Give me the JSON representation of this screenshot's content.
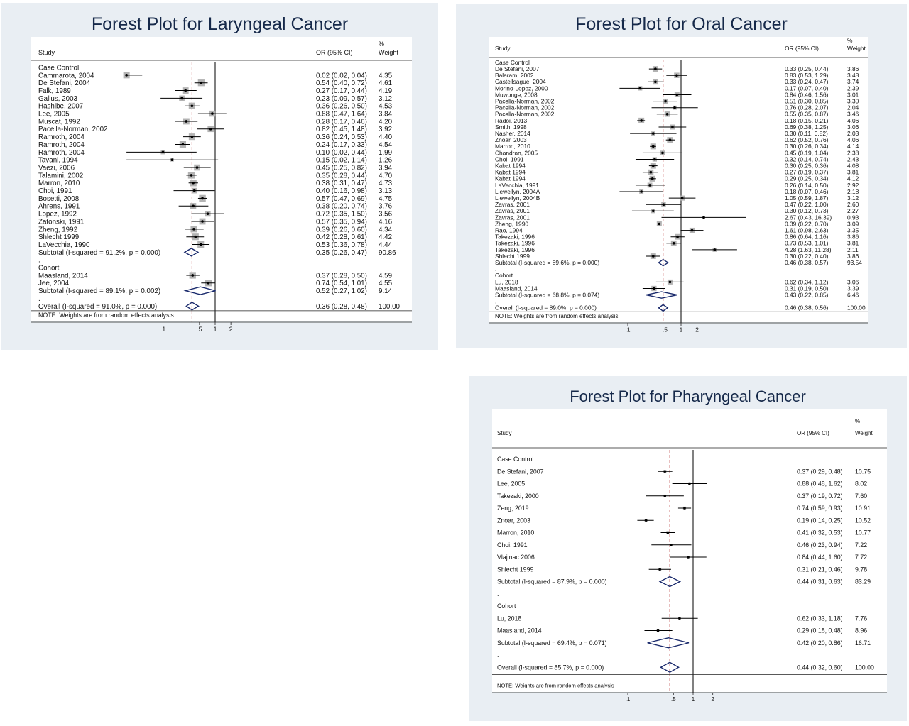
{
  "chart_data": [
    {
      "type": "forest",
      "title": "Forest Plot for Laryngeal Cancer",
      "columns": {
        "study": "Study",
        "or": "OR (95% CI)",
        "weight_top": "%",
        "weight_bottom": "Weight"
      },
      "note": "NOTE: Weights are from random effects analysis",
      "x_ticks": [
        ".1",
        ".5",
        "1",
        "2"
      ],
      "reference_line": 1,
      "overall_line": 0.36,
      "rows": [
        {
          "kind": "group",
          "label": "Case Control"
        },
        {
          "kind": "study",
          "label": "Cammarota, 2004",
          "or": 0.02,
          "lo": 0.02,
          "hi": 0.04,
          "ci_text": "0.02 (0.02, 0.04)",
          "weight": "4.35"
        },
        {
          "kind": "study",
          "label": "De Stefani, 2004",
          "or": 0.54,
          "lo": 0.4,
          "hi": 0.72,
          "ci_text": "0.54 (0.40, 0.72)",
          "weight": "4.61"
        },
        {
          "kind": "study",
          "label": "Falk, 1989",
          "or": 0.27,
          "lo": 0.17,
          "hi": 0.44,
          "ci_text": "0.27 (0.17, 0.44)",
          "weight": "4.19"
        },
        {
          "kind": "study",
          "label": "Gallus, 2003",
          "or": 0.23,
          "lo": 0.09,
          "hi": 0.57,
          "ci_text": "0.23 (0.09, 0.57)",
          "weight": "3.12"
        },
        {
          "kind": "study",
          "label": "Hashibe, 2007",
          "or": 0.36,
          "lo": 0.26,
          "hi": 0.5,
          "ci_text": "0.36 (0.26, 0.50)",
          "weight": "4.53"
        },
        {
          "kind": "study",
          "label": "Lee, 2005",
          "or": 0.88,
          "lo": 0.47,
          "hi": 1.64,
          "ci_text": "0.88 (0.47, 1.64)",
          "weight": "3.84"
        },
        {
          "kind": "study",
          "label": "Muscat, 1992",
          "or": 0.28,
          "lo": 0.17,
          "hi": 0.46,
          "ci_text": "0.28 (0.17, 0.46)",
          "weight": "4.20"
        },
        {
          "kind": "study",
          "label": "Pacella-Norman, 2002",
          "or": 0.82,
          "lo": 0.45,
          "hi": 1.48,
          "ci_text": "0.82 (0.45, 1.48)",
          "weight": "3.92"
        },
        {
          "kind": "study",
          "label": "Ramroth, 2004",
          "or": 0.36,
          "lo": 0.24,
          "hi": 0.53,
          "ci_text": "0.36 (0.24, 0.53)",
          "weight": "4.40"
        },
        {
          "kind": "study",
          "label": "Ramroth, 2004",
          "or": 0.24,
          "lo": 0.17,
          "hi": 0.33,
          "ci_text": "0.24 (0.17, 0.33)",
          "weight": "4.54"
        },
        {
          "kind": "study",
          "label": "Ramroth, 2004",
          "or": 0.1,
          "lo": 0.02,
          "hi": 0.44,
          "ci_text": "0.10 (0.02, 0.44)",
          "weight": "1.99"
        },
        {
          "kind": "study",
          "label": "Tavani, 1994",
          "or": 0.15,
          "lo": 0.02,
          "hi": 1.14,
          "ci_text": "0.15 (0.02, 1.14)",
          "weight": "1.26"
        },
        {
          "kind": "study",
          "label": "Vaezi, 2006",
          "or": 0.45,
          "lo": 0.25,
          "hi": 0.82,
          "ci_text": "0.45 (0.25, 0.82)",
          "weight": "3.94"
        },
        {
          "kind": "study",
          "label": "Talamini, 2002",
          "or": 0.35,
          "lo": 0.28,
          "hi": 0.44,
          "ci_text": "0.35 (0.28, 0.44)",
          "weight": "4.70"
        },
        {
          "kind": "study",
          "label": "Marron, 2010",
          "or": 0.38,
          "lo": 0.31,
          "hi": 0.47,
          "ci_text": "0.38 (0.31, 0.47)",
          "weight": "4.73"
        },
        {
          "kind": "study",
          "label": "Choi, 1991",
          "or": 0.4,
          "lo": 0.16,
          "hi": 0.98,
          "ci_text": "0.40 (0.16, 0.98)",
          "weight": "3.13"
        },
        {
          "kind": "study",
          "label": "Bosetti, 2008",
          "or": 0.57,
          "lo": 0.47,
          "hi": 0.69,
          "ci_text": "0.57 (0.47, 0.69)",
          "weight": "4.75"
        },
        {
          "kind": "study",
          "label": "Ahrens, 1991",
          "or": 0.38,
          "lo": 0.2,
          "hi": 0.74,
          "ci_text": "0.38 (0.20, 0.74)",
          "weight": "3.76"
        },
        {
          "kind": "study",
          "label": "Lopez, 1992",
          "or": 0.72,
          "lo": 0.35,
          "hi": 1.5,
          "ci_text": "0.72 (0.35, 1.50)",
          "weight": "3.56"
        },
        {
          "kind": "study",
          "label": "Zatonski, 1991",
          "or": 0.57,
          "lo": 0.35,
          "hi": 0.94,
          "ci_text": "0.57 (0.35, 0.94)",
          "weight": "4.16"
        },
        {
          "kind": "study",
          "label": "Zheng, 1992",
          "or": 0.39,
          "lo": 0.26,
          "hi": 0.6,
          "ci_text": "0.39 (0.26, 0.60)",
          "weight": "4.34"
        },
        {
          "kind": "study",
          "label": "Shlecht 1999",
          "or": 0.42,
          "lo": 0.28,
          "hi": 0.61,
          "ci_text": "0.42 (0.28, 0.61)",
          "weight": "4.42"
        },
        {
          "kind": "study",
          "label": "LaVecchia, 1990",
          "or": 0.53,
          "lo": 0.36,
          "hi": 0.78,
          "ci_text": "0.53 (0.36, 0.78)",
          "weight": "4.44"
        },
        {
          "kind": "subtotal",
          "label": "Subtotal  (I-squared = 91.2%, p = 0.000)",
          "or": 0.35,
          "lo": 0.26,
          "hi": 0.47,
          "ci_text": "0.35 (0.26, 0.47)",
          "weight": "90.86"
        },
        {
          "kind": "dot",
          "label": "."
        },
        {
          "kind": "group",
          "label": "Cohort"
        },
        {
          "kind": "study",
          "label": "Maasland, 2014",
          "or": 0.37,
          "lo": 0.28,
          "hi": 0.5,
          "ci_text": "0.37 (0.28, 0.50)",
          "weight": "4.59"
        },
        {
          "kind": "study",
          "label": "Jee, 2004",
          "or": 0.74,
          "lo": 0.54,
          "hi": 1.01,
          "ci_text": "0.74 (0.54, 1.01)",
          "weight": "4.55"
        },
        {
          "kind": "subtotal",
          "label": "Subtotal  (I-squared = 89.1%, p = 0.002)",
          "or": 0.52,
          "lo": 0.27,
          "hi": 1.02,
          "ci_text": "0.52 (0.27, 1.02)",
          "weight": "9.14"
        },
        {
          "kind": "dot",
          "label": "."
        },
        {
          "kind": "subtotal",
          "label": "Overall  (I-squared = 91.0%, p = 0.000)",
          "or": 0.36,
          "lo": 0.28,
          "hi": 0.48,
          "ci_text": "0.36 (0.28, 0.48)",
          "weight": "100.00"
        }
      ]
    },
    {
      "type": "forest",
      "title": "Forest Plot for Oral Cancer",
      "columns": {
        "study": "Study",
        "or": "OR (95% CI)",
        "weight_top": "%",
        "weight_bottom": "Weight"
      },
      "note": "NOTE: Weights are from random effects analysis",
      "x_ticks": [
        ".1",
        ".5",
        "1",
        "2"
      ],
      "reference_line": 1,
      "overall_line": 0.46,
      "rows": [
        {
          "kind": "group",
          "label": "Case Control"
        },
        {
          "kind": "study",
          "label": "De Stefani, 2007",
          "or": 0.33,
          "lo": 0.25,
          "hi": 0.44,
          "ci_text": "0.33 (0.25, 0.44)",
          "weight": "3.86"
        },
        {
          "kind": "study",
          "label": "Balaram, 2002",
          "or": 0.83,
          "lo": 0.53,
          "hi": 1.29,
          "ci_text": "0.83 (0.53, 1.29)",
          "weight": "3.48"
        },
        {
          "kind": "study",
          "label": "Castellsague, 2004",
          "or": 0.33,
          "lo": 0.24,
          "hi": 0.47,
          "ci_text": "0.33 (0.24, 0.47)",
          "weight": "3.74"
        },
        {
          "kind": "study",
          "label": "Morino-Lopez, 2000",
          "or": 0.17,
          "lo": 0.07,
          "hi": 0.4,
          "ci_text": "0.17 (0.07, 0.40)",
          "weight": "2.39"
        },
        {
          "kind": "study",
          "label": "Muwonge, 2008",
          "or": 0.84,
          "lo": 0.46,
          "hi": 1.56,
          "ci_text": "0.84 (0.46, 1.56)",
          "weight": "3.01"
        },
        {
          "kind": "study",
          "label": "Pacella-Norman, 2002",
          "or": 0.51,
          "lo": 0.3,
          "hi": 0.85,
          "ci_text": "0.51 (0.30, 0.85)",
          "weight": "3.30"
        },
        {
          "kind": "study",
          "label": "Pacella-Norman, 2002",
          "or": 0.76,
          "lo": 0.28,
          "hi": 2.07,
          "ci_text": "0.76 (0.28, 2.07)",
          "weight": "2.04"
        },
        {
          "kind": "study",
          "label": "Pacella-Norman, 2002",
          "or": 0.55,
          "lo": 0.35,
          "hi": 0.87,
          "ci_text": "0.55 (0.35, 0.87)",
          "weight": "3.46"
        },
        {
          "kind": "study",
          "label": "Radoi, 2013",
          "or": 0.18,
          "lo": 0.15,
          "hi": 0.21,
          "ci_text": "0.18 (0.15, 0.21)",
          "weight": "4.06"
        },
        {
          "kind": "study",
          "label": "Smith, 1998",
          "or": 0.69,
          "lo": 0.38,
          "hi": 1.25,
          "ci_text": "0.69 (0.38, 1.25)",
          "weight": "3.06"
        },
        {
          "kind": "study",
          "label": "Nasher, 2014",
          "or": 0.3,
          "lo": 0.11,
          "hi": 0.82,
          "ci_text": "0.30 (0.11, 0.82)",
          "weight": "2.03"
        },
        {
          "kind": "study",
          "label": "Znoar, 2003",
          "or": 0.62,
          "lo": 0.52,
          "hi": 0.76,
          "ci_text": "0.62 (0.52, 0.76)",
          "weight": "4.06"
        },
        {
          "kind": "study",
          "label": "Marron, 2010",
          "or": 0.3,
          "lo": 0.26,
          "hi": 0.34,
          "ci_text": "0.30 (0.26, 0.34)",
          "weight": "4.14"
        },
        {
          "kind": "study",
          "label": "Chandran, 2005",
          "or": 0.45,
          "lo": 0.19,
          "hi": 1.04,
          "ci_text": "0.45 (0.19, 1.04)",
          "weight": "2.38"
        },
        {
          "kind": "study",
          "label": "Choi, 1991",
          "or": 0.32,
          "lo": 0.14,
          "hi": 0.74,
          "ci_text": "0.32 (0.14, 0.74)",
          "weight": "2.43"
        },
        {
          "kind": "study",
          "label": "Kabat 1994",
          "or": 0.3,
          "lo": 0.25,
          "hi": 0.36,
          "ci_text": "0.30 (0.25, 0.36)",
          "weight": "4.08"
        },
        {
          "kind": "study",
          "label": "Kabat 1994",
          "or": 0.27,
          "lo": 0.19,
          "hi": 0.37,
          "ci_text": "0.27 (0.19, 0.37)",
          "weight": "3.81"
        },
        {
          "kind": "study",
          "label": "Kabat 1994",
          "or": 0.29,
          "lo": 0.25,
          "hi": 0.34,
          "ci_text": "0.29 (0.25, 0.34)",
          "weight": "4.12"
        },
        {
          "kind": "study",
          "label": "LaVecchia, 1991",
          "or": 0.26,
          "lo": 0.14,
          "hi": 0.5,
          "ci_text": "0.26 (0.14, 0.50)",
          "weight": "2.92"
        },
        {
          "kind": "study",
          "label": "Llewellyn, 2004A",
          "or": 0.18,
          "lo": 0.07,
          "hi": 0.46,
          "ci_text": "0.18 (0.07, 0.46)",
          "weight": "2.18"
        },
        {
          "kind": "study",
          "label": "Llewellyn, 2004B",
          "or": 1.05,
          "lo": 0.59,
          "hi": 1.87,
          "ci_text": "1.05 (0.59, 1.87)",
          "weight": "3.12"
        },
        {
          "kind": "study",
          "label": "Zavras, 2001",
          "or": 0.47,
          "lo": 0.22,
          "hi": 1.0,
          "ci_text": "0.47 (0.22, 1.00)",
          "weight": "2.60"
        },
        {
          "kind": "study",
          "label": "Zavras, 2001",
          "or": 0.3,
          "lo": 0.12,
          "hi": 0.73,
          "ci_text": "0.30 (0.12, 0.73)",
          "weight": "2.27"
        },
        {
          "kind": "study",
          "label": "Zavras, 2001",
          "or": 2.67,
          "lo": 0.43,
          "hi": 16.39,
          "ci_text": "2.67 (0.43, 16.39)",
          "weight": "0.93",
          "arrow": true
        },
        {
          "kind": "study",
          "label": "Zheng, 1990",
          "or": 0.39,
          "lo": 0.22,
          "hi": 0.7,
          "ci_text": "0.39 (0.22, 0.70)",
          "weight": "3.09"
        },
        {
          "kind": "study",
          "label": "Rao, 1994",
          "or": 1.61,
          "lo": 0.98,
          "hi": 2.63,
          "ci_text": "1.61 (0.98, 2.63)",
          "weight": "3.35"
        },
        {
          "kind": "study",
          "label": "Takezaki, 1996",
          "or": 0.86,
          "lo": 0.64,
          "hi": 1.16,
          "ci_text": "0.86 (0.64, 1.16)",
          "weight": "3.86"
        },
        {
          "kind": "study",
          "label": "Takezaki, 1996",
          "or": 0.73,
          "lo": 0.53,
          "hi": 1.01,
          "ci_text": "0.73 (0.53, 1.01)",
          "weight": "3.81"
        },
        {
          "kind": "study",
          "label": "Takezaki, 1996",
          "or": 4.28,
          "lo": 1.63,
          "hi": 11.28,
          "ci_text": "4.28 (1.63, 11.28)",
          "weight": "2.11"
        },
        {
          "kind": "study",
          "label": "Shlecht 1999",
          "or": 0.3,
          "lo": 0.22,
          "hi": 0.4,
          "ci_text": "0.30 (0.22, 0.40)",
          "weight": "3.86"
        },
        {
          "kind": "subtotal",
          "label": "Subtotal  (I-squared = 89.6%, p = 0.000)",
          "or": 0.46,
          "lo": 0.38,
          "hi": 0.57,
          "ci_text": "0.46 (0.38, 0.57)",
          "weight": "93.54"
        },
        {
          "kind": "dot",
          "label": "."
        },
        {
          "kind": "group",
          "label": "Cohort"
        },
        {
          "kind": "study",
          "label": "Lu, 2018",
          "or": 0.62,
          "lo": 0.34,
          "hi": 1.12,
          "ci_text": "0.62 (0.34, 1.12)",
          "weight": "3.06"
        },
        {
          "kind": "study",
          "label": "Maasland, 2014",
          "or": 0.31,
          "lo": 0.19,
          "hi": 0.5,
          "ci_text": "0.31 (0.19, 0.50)",
          "weight": "3.39"
        },
        {
          "kind": "subtotal",
          "label": "Subtotal  (I-squared = 68.8%, p = 0.074)",
          "or": 0.43,
          "lo": 0.22,
          "hi": 0.85,
          "ci_text": "0.43 (0.22, 0.85)",
          "weight": "6.46"
        },
        {
          "kind": "dot",
          "label": "."
        },
        {
          "kind": "subtotal",
          "label": "Overall  (I-squared = 89.0%, p = 0.000)",
          "or": 0.46,
          "lo": 0.38,
          "hi": 0.56,
          "ci_text": "0.46 (0.38, 0.56)",
          "weight": "100.00"
        }
      ]
    },
    {
      "type": "forest",
      "title": "Forest Plot for Pharyngeal Cancer",
      "columns": {
        "study": "Study",
        "or": "OR (95% CI)",
        "weight_top": "%",
        "weight_bottom": "Weight"
      },
      "note": "NOTE: Weights are from random effects analysis",
      "x_ticks": [
        ".1",
        ".5",
        "1",
        "2"
      ],
      "reference_line": 1,
      "overall_line": 0.44,
      "rows": [
        {
          "kind": "group",
          "label": "Case Control"
        },
        {
          "kind": "study",
          "label": "De Stefani, 2007",
          "or": 0.37,
          "lo": 0.29,
          "hi": 0.48,
          "ci_text": "0.37 (0.29, 0.48)",
          "weight": "10.75"
        },
        {
          "kind": "study",
          "label": "Lee, 2005",
          "or": 0.88,
          "lo": 0.48,
          "hi": 1.62,
          "ci_text": "0.88 (0.48, 1.62)",
          "weight": "8.02"
        },
        {
          "kind": "study",
          "label": "Takezaki, 2000",
          "or": 0.37,
          "lo": 0.19,
          "hi": 0.72,
          "ci_text": "0.37 (0.19, 0.72)",
          "weight": "7.60"
        },
        {
          "kind": "study",
          "label": "Zeng, 2019",
          "or": 0.74,
          "lo": 0.59,
          "hi": 0.93,
          "ci_text": "0.74 (0.59, 0.93)",
          "weight": "10.91"
        },
        {
          "kind": "study",
          "label": "Znoar, 2003",
          "or": 0.19,
          "lo": 0.14,
          "hi": 0.25,
          "ci_text": "0.19 (0.14, 0.25)",
          "weight": "10.52"
        },
        {
          "kind": "study",
          "label": "Marron, 2010",
          "or": 0.41,
          "lo": 0.32,
          "hi": 0.53,
          "ci_text": "0.41 (0.32, 0.53)",
          "weight": "10.77"
        },
        {
          "kind": "study",
          "label": "Choi, 1991",
          "or": 0.46,
          "lo": 0.23,
          "hi": 0.94,
          "ci_text": "0.46 (0.23, 0.94)",
          "weight": "7.22"
        },
        {
          "kind": "study",
          "label": "Vlajinac 2006",
          "or": 0.84,
          "lo": 0.44,
          "hi": 1.6,
          "ci_text": "0.84 (0.44, 1.60)",
          "weight": "7.72"
        },
        {
          "kind": "study",
          "label": "Shlecht 1999",
          "or": 0.31,
          "lo": 0.21,
          "hi": 0.46,
          "ci_text": "0.31 (0.21, 0.46)",
          "weight": "9.78"
        },
        {
          "kind": "subtotal",
          "label": "Subtotal  (I-squared = 87.9%, p = 0.000)",
          "or": 0.44,
          "lo": 0.31,
          "hi": 0.63,
          "ci_text": "0.44 (0.31, 0.63)",
          "weight": "83.29"
        },
        {
          "kind": "dot",
          "label": "."
        },
        {
          "kind": "group",
          "label": "Cohort"
        },
        {
          "kind": "study",
          "label": "Lu, 2018",
          "or": 0.62,
          "lo": 0.33,
          "hi": 1.18,
          "ci_text": "0.62 (0.33, 1.18)",
          "weight": "7.76"
        },
        {
          "kind": "study",
          "label": "Maasland, 2014",
          "or": 0.29,
          "lo": 0.18,
          "hi": 0.48,
          "ci_text": "0.29 (0.18, 0.48)",
          "weight": "8.96"
        },
        {
          "kind": "subtotal",
          "label": "Subtotal  (I-squared = 69.4%, p = 0.071)",
          "or": 0.42,
          "lo": 0.2,
          "hi": 0.86,
          "ci_text": "0.42 (0.20, 0.86)",
          "weight": "16.71"
        },
        {
          "kind": "dot",
          "label": "."
        },
        {
          "kind": "subtotal",
          "label": "Overall  (I-squared = 85.7%, p = 0.000)",
          "or": 0.44,
          "lo": 0.32,
          "hi": 0.6,
          "ci_text": "0.44 (0.32, 0.60)",
          "weight": "100.00"
        }
      ]
    }
  ]
}
